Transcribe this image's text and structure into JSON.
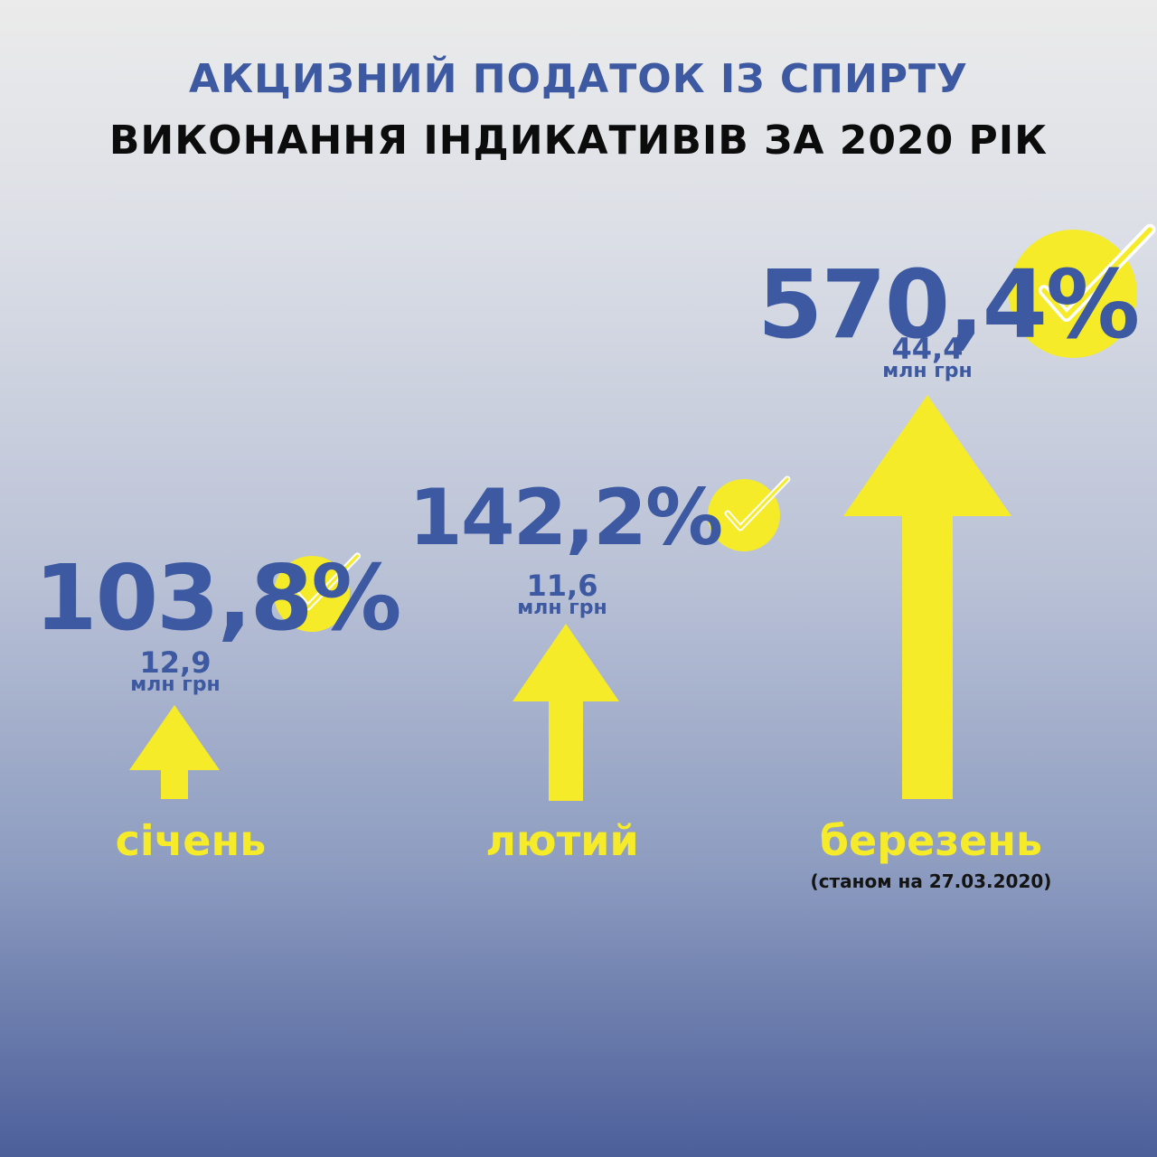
{
  "title": "АКЦИЗНИЙ ПОДАТОК ІЗ СПИРТУ",
  "subtitle": "ВИКОНАННЯ ІНДИКАТИВІВ ЗА 2020 РІК",
  "colors": {
    "accent_blue": "#3c59a1",
    "yellow": "#f5eb29",
    "dark_text": "#0c0c0c"
  },
  "icons": [
    "check-circle-icon",
    "up-arrow-icon"
  ],
  "chart_data": {
    "type": "bar",
    "categories": [
      "січень",
      "лютий",
      "березень"
    ],
    "category_notes": [
      "",
      "",
      "(станом на 27.03.2020)"
    ],
    "series": [
      {
        "values": [
          103.8,
          142.2,
          570.4
        ]
      },
      {
        "values": [
          12.9,
          11.6,
          44.4
        ]
      }
    ],
    "labels": {
      "percent": [
        "103,8%",
        "142,2%",
        "570,4%"
      ],
      "amount": [
        "12,9",
        "11,6",
        "44,4"
      ],
      "unit": "млн грн"
    }
  }
}
